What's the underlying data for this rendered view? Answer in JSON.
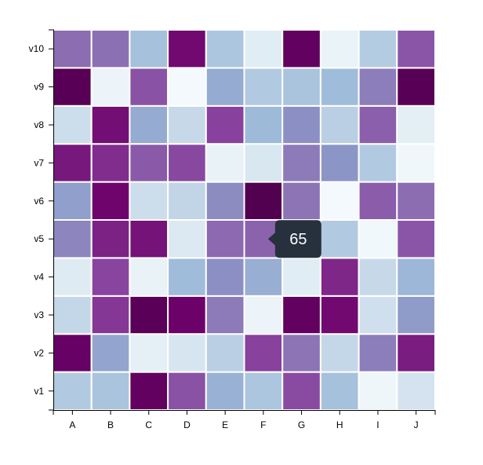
{
  "chart_data": {
    "type": "heatmap",
    "title": "",
    "xlabel": "",
    "ylabel": "",
    "x_categories": [
      "A",
      "B",
      "C",
      "D",
      "E",
      "F",
      "G",
      "H",
      "I",
      "J"
    ],
    "y_categories": [
      "v1",
      "v2",
      "v3",
      "v4",
      "v5",
      "v6",
      "v7",
      "v8",
      "v9",
      "v10"
    ],
    "value_range": [
      0,
      100
    ],
    "color_scale": [
      "#f7fcfd",
      "#e0ecf4",
      "#bfd3e6",
      "#9ebcda",
      "#8c96c6",
      "#8c6bb1",
      "#88419d",
      "#6e016b",
      "#4d004b"
    ],
    "rows": [
      {
        "y": "v1",
        "values": [
          30,
          33,
          92,
          70,
          41,
          32,
          72,
          35,
          5,
          17
        ]
      },
      {
        "y": "v2",
        "values": [
          90,
          45,
          10,
          16,
          27,
          75,
          60,
          23,
          57,
          82
        ]
      },
      {
        "y": "v3",
        "values": [
          23,
          77,
          95,
          88,
          58,
          6,
          92,
          86,
          19,
          48
        ]
      },
      {
        "y": "v4",
        "values": [
          13,
          74,
          8,
          37,
          52,
          42,
          12,
          80,
          22,
          39
        ]
      },
      {
        "y": "v5",
        "values": [
          55,
          81,
          84,
          14,
          63,
          65,
          64,
          30,
          3,
          69
        ]
      },
      {
        "y": "v6",
        "values": [
          47,
          87,
          20,
          24,
          53,
          98,
          60,
          2,
          67,
          62
        ]
      },
      {
        "y": "v7",
        "values": [
          83,
          79,
          68,
          73,
          8,
          15,
          58,
          50,
          30,
          4
        ]
      },
      {
        "y": "v8",
        "values": [
          20,
          85,
          43,
          22,
          75,
          38,
          52,
          27,
          66,
          11
        ]
      },
      {
        "y": "v9",
        "values": [
          96,
          6,
          70,
          2,
          43,
          30,
          33,
          37,
          57,
          96
        ]
      },
      {
        "y": "v10",
        "values": [
          62,
          61,
          35,
          86,
          32,
          12,
          92,
          7,
          29,
          69
        ]
      }
    ],
    "tooltip": {
      "x": "F",
      "y": "v5",
      "value": "65"
    }
  }
}
